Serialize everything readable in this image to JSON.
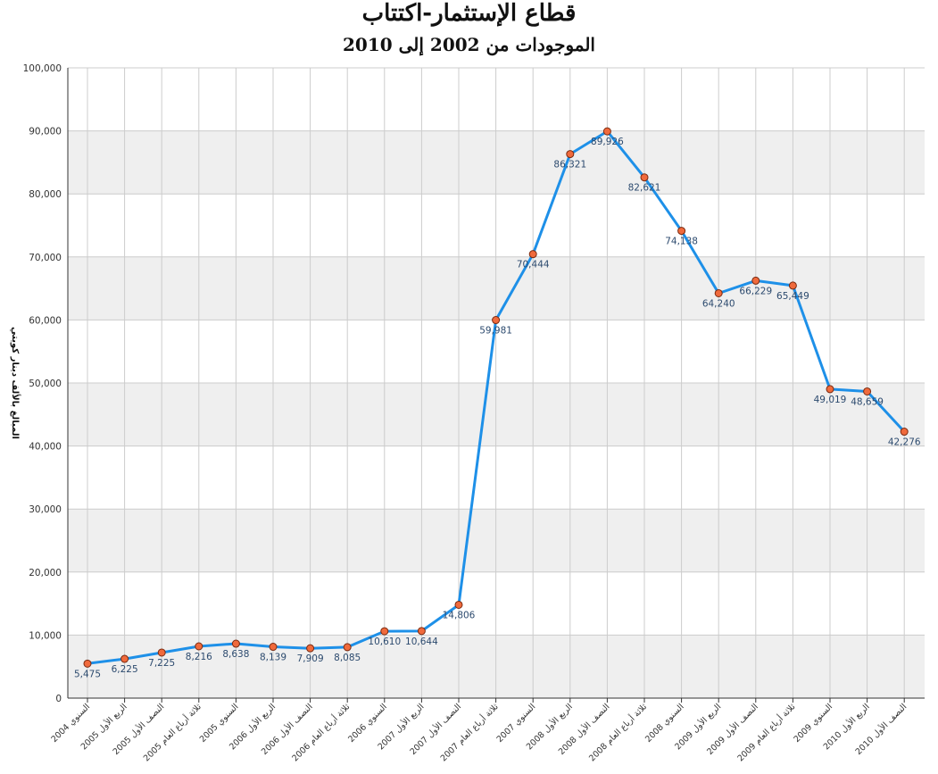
{
  "chart_data": {
    "type": "line",
    "title": "قطاع الإستثمار-اكتتاب",
    "subtitle": "الموجودات من 2002 إلى 2010",
    "ylabel": "المبالغ بالألف دينار كويتي",
    "xlabel": "",
    "ylim": [
      0,
      100000
    ],
    "yticks": [
      "0",
      "10,000",
      "20,000",
      "30,000",
      "40,000",
      "50,000",
      "60,000",
      "70,000",
      "80,000",
      "90,000",
      "100,000"
    ],
    "grid": true,
    "colors": {
      "line": "#1e90e8",
      "marker": "#f06a3c",
      "band": "#efefef",
      "grid": "#cccccc"
    },
    "categories": [
      "السنوي 2004",
      "الربع الأول 2005",
      "النصف الأول 2005",
      "ثلاثة أرباع العام 2005",
      "السنوي 2005",
      "الربع الأول 2006",
      "النصف الأول 2006",
      "ثلاثة أرباع العام 2006",
      "السنوي 2006",
      "الربع الأول 2007",
      "النصف الأول 2007",
      "ثلاثة أرباع العام 2007",
      "السنوي 2007",
      "الربع الأول 2008",
      "النصف الأول 2008",
      "ثلاثة أرباع العام 2008",
      "السنوي 2008",
      "الربع الأول 2009",
      "النصف الأول 2009",
      "ثلاثة أرباع العام 2009",
      "السنوي 2009",
      "الربع الأول 2010",
      "النصف الأول 2010"
    ],
    "values": [
      5475,
      6225,
      7225,
      8216,
      8638,
      8139,
      7909,
      8085,
      10610,
      10644,
      14806,
      59981,
      70444,
      86321,
      89926,
      82621,
      74138,
      64240,
      66229,
      65449,
      49019,
      48659,
      42276
    ],
    "labels": [
      "5,475",
      "6,225",
      "7,225",
      "8,216",
      "8,638",
      "8,139",
      "7,909",
      "8,085",
      "10,610",
      "10,644",
      "14,806",
      "59,981",
      "70,444",
      "86,321",
      "89,926",
      "82,621",
      "74,138",
      "64,240",
      "66,229",
      "65,449",
      "49,019",
      "48,659",
      "42,276"
    ]
  }
}
